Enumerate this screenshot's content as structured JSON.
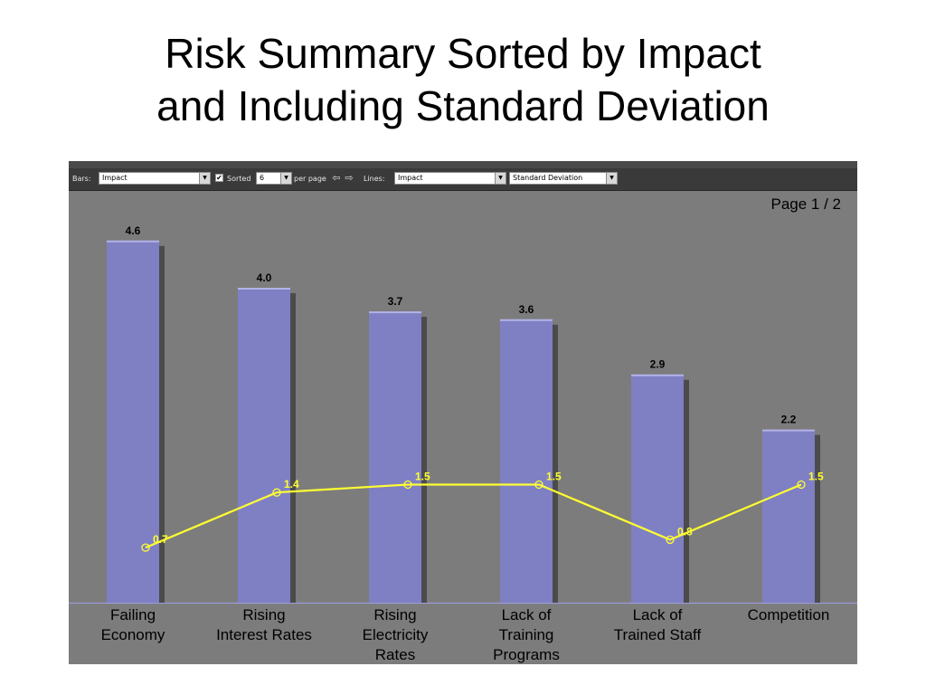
{
  "slide": {
    "title_line1": "Risk Summary Sorted by Impact",
    "title_line2": "and Including Standard Deviation"
  },
  "toolbar": {
    "bars_label": "Bars:",
    "bars_value": "Impact",
    "sorted_label": "Sorted",
    "sorted_checked": "✔",
    "per_page_value": "6",
    "per_page_label": "per page",
    "lines_label": "Lines:",
    "lines_value1": "Impact",
    "lines_value2": "Standard Deviation"
  },
  "pager": {
    "text": "Page 1 / 2"
  },
  "colors": {
    "bar": "#7f7fc4",
    "line": "#ffff33",
    "background": "#7c7c7c"
  },
  "chart_data": {
    "type": "bar",
    "categories": [
      [
        "Failing",
        "Economy"
      ],
      [
        "Rising",
        "Interest Rates"
      ],
      [
        "Rising",
        "Electricity",
        "Rates"
      ],
      [
        "Lack of",
        "Training",
        "Programs"
      ],
      [
        "Lack of",
        "Trained Staff"
      ],
      [
        "Competition"
      ]
    ],
    "series": [
      {
        "name": "Impact",
        "type": "bar",
        "values": [
          4.6,
          4.0,
          3.7,
          3.6,
          2.9,
          2.2
        ],
        "labels": [
          "4.6",
          "4.0",
          "3.7",
          "3.6",
          "2.9",
          "2.2"
        ]
      },
      {
        "name": "Standard Deviation",
        "type": "line",
        "values": [
          0.7,
          1.4,
          1.5,
          1.5,
          0.8,
          1.5
        ],
        "labels": [
          "0.7",
          "1.4",
          "1.5",
          "1.5",
          "0.8",
          "1.5"
        ]
      }
    ],
    "ylim": [
      0,
      5
    ],
    "grid": false
  }
}
